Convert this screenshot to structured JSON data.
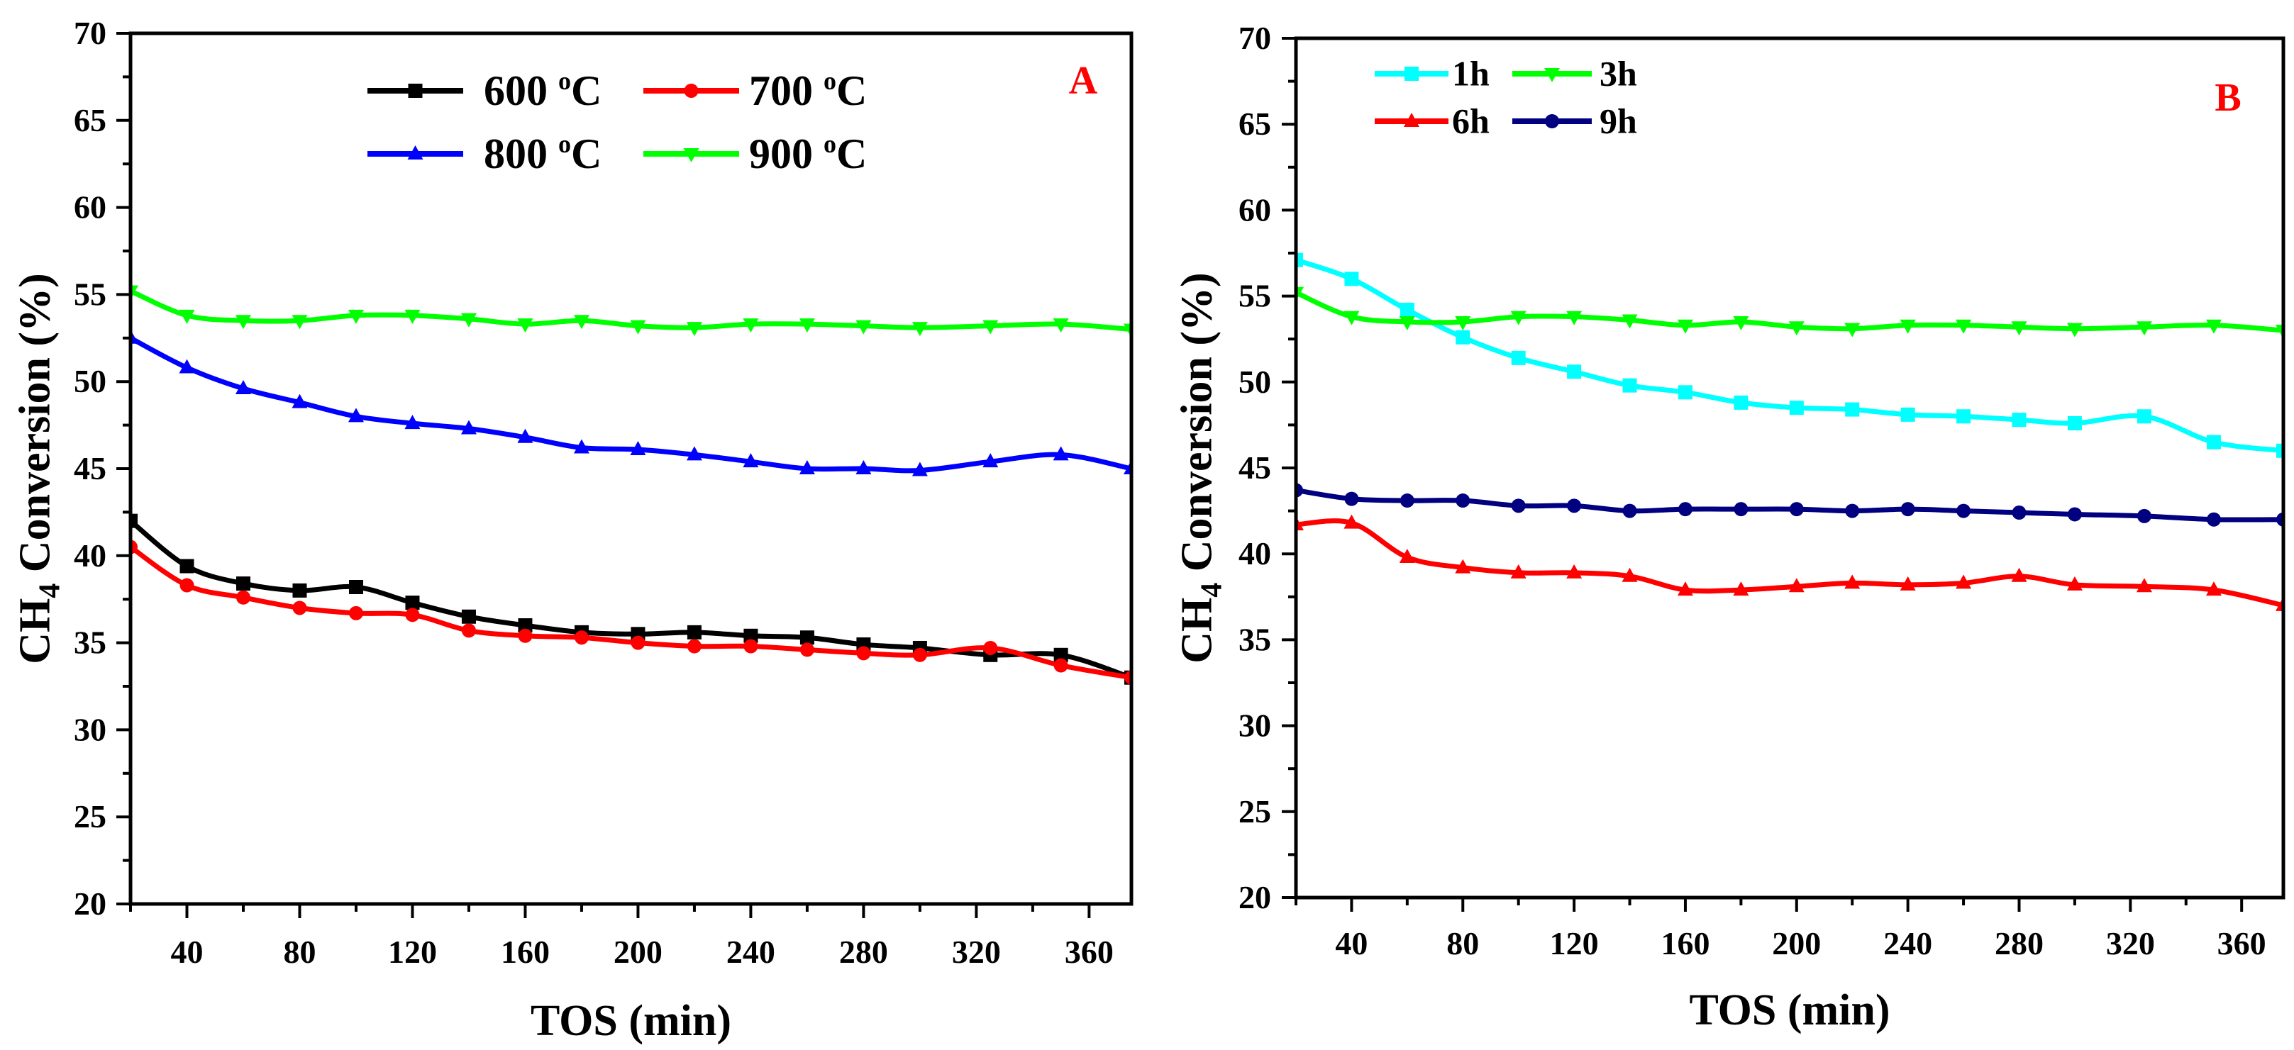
{
  "chart_data": [
    {
      "type": "line",
      "panel_label": "A",
      "panel_label_color": "#ff0000",
      "xlabel": "TOS (min)",
      "ylabel": "CH4 Conversion (%)",
      "xlim": [
        20,
        375
      ],
      "ylim": [
        20,
        70
      ],
      "xticks": [
        40,
        80,
        120,
        160,
        200,
        240,
        280,
        320,
        360
      ],
      "yticks": [
        20,
        25,
        30,
        35,
        40,
        45,
        50,
        55,
        60,
        65,
        70
      ],
      "grid": false,
      "legend_position": "top-center",
      "x": [
        20,
        40,
        60,
        80,
        100,
        120,
        140,
        160,
        180,
        200,
        220,
        240,
        260,
        280,
        300,
        325,
        350,
        375
      ],
      "series": [
        {
          "name": "600 °C",
          "color": "#000000",
          "marker": "square",
          "values": [
            42,
            39.4,
            38.4,
            38,
            38.2,
            37.3,
            36.5,
            36,
            35.6,
            35.5,
            35.6,
            35.4,
            35.3,
            34.9,
            34.7,
            34.3,
            34.3,
            33
          ]
        },
        {
          "name": "700 °C",
          "color": "#ff0000",
          "marker": "circle",
          "values": [
            40.5,
            38.3,
            37.6,
            37,
            36.7,
            36.6,
            35.7,
            35.4,
            35.3,
            35,
            34.8,
            34.8,
            34.6,
            34.4,
            34.3,
            34.7,
            33.7,
            33
          ]
        },
        {
          "name": "800 °C",
          "color": "#0000ff",
          "marker": "triangle-up",
          "values": [
            52.5,
            50.8,
            49.6,
            48.8,
            48,
            47.6,
            47.3,
            46.8,
            46.2,
            46.1,
            45.8,
            45.4,
            45,
            45,
            44.9,
            45.4,
            45.8,
            45
          ]
        },
        {
          "name": "900 °C",
          "color": "#00ff00",
          "marker": "triangle-down",
          "values": [
            55.2,
            53.8,
            53.5,
            53.5,
            53.8,
            53.8,
            53.6,
            53.3,
            53.5,
            53.2,
            53.1,
            53.3,
            53.3,
            53.2,
            53.1,
            53.2,
            53.3,
            53.0
          ]
        }
      ]
    },
    {
      "type": "line",
      "panel_label": "B",
      "panel_label_color": "#ff0000",
      "xlabel": "TOS (min)",
      "ylabel": "CH4 Conversion (%)",
      "xlim": [
        20,
        375
      ],
      "ylim": [
        20,
        70
      ],
      "xticks": [
        40,
        80,
        120,
        160,
        200,
        240,
        280,
        320,
        360
      ],
      "yticks": [
        20,
        25,
        30,
        35,
        40,
        45,
        50,
        55,
        60,
        65,
        70
      ],
      "grid": false,
      "legend_position": "top-left",
      "x": [
        20,
        40,
        60,
        80,
        100,
        120,
        140,
        160,
        180,
        200,
        220,
        240,
        260,
        280,
        300,
        325,
        350,
        375
      ],
      "series": [
        {
          "name": "1h",
          "color": "#00ffff",
          "marker": "square",
          "values": [
            57.1,
            56,
            54.2,
            52.6,
            51.4,
            50.6,
            49.8,
            49.4,
            48.8,
            48.5,
            48.4,
            48.1,
            48,
            47.8,
            47.6,
            48,
            46.5,
            46
          ]
        },
        {
          "name": "3h",
          "color": "#00ff00",
          "marker": "triangle-down",
          "values": [
            55.2,
            53.8,
            53.5,
            53.5,
            53.8,
            53.8,
            53.6,
            53.3,
            53.5,
            53.2,
            53.1,
            53.3,
            53.3,
            53.2,
            53.1,
            53.2,
            53.3,
            53.0
          ]
        },
        {
          "name": "6h",
          "color": "#ff0000",
          "marker": "triangle-up",
          "values": [
            41.7,
            41.8,
            39.8,
            39.2,
            38.9,
            38.9,
            38.7,
            37.9,
            37.9,
            38.1,
            38.3,
            38.2,
            38.3,
            38.7,
            38.2,
            38.1,
            37.9,
            37
          ]
        },
        {
          "name": "9h",
          "color": "#000080",
          "marker": "circle",
          "values": [
            43.7,
            43.2,
            43.1,
            43.1,
            42.8,
            42.8,
            42.5,
            42.6,
            42.6,
            42.6,
            42.5,
            42.6,
            42.5,
            42.4,
            42.3,
            42.2,
            42.0,
            42.0
          ]
        }
      ]
    }
  ]
}
